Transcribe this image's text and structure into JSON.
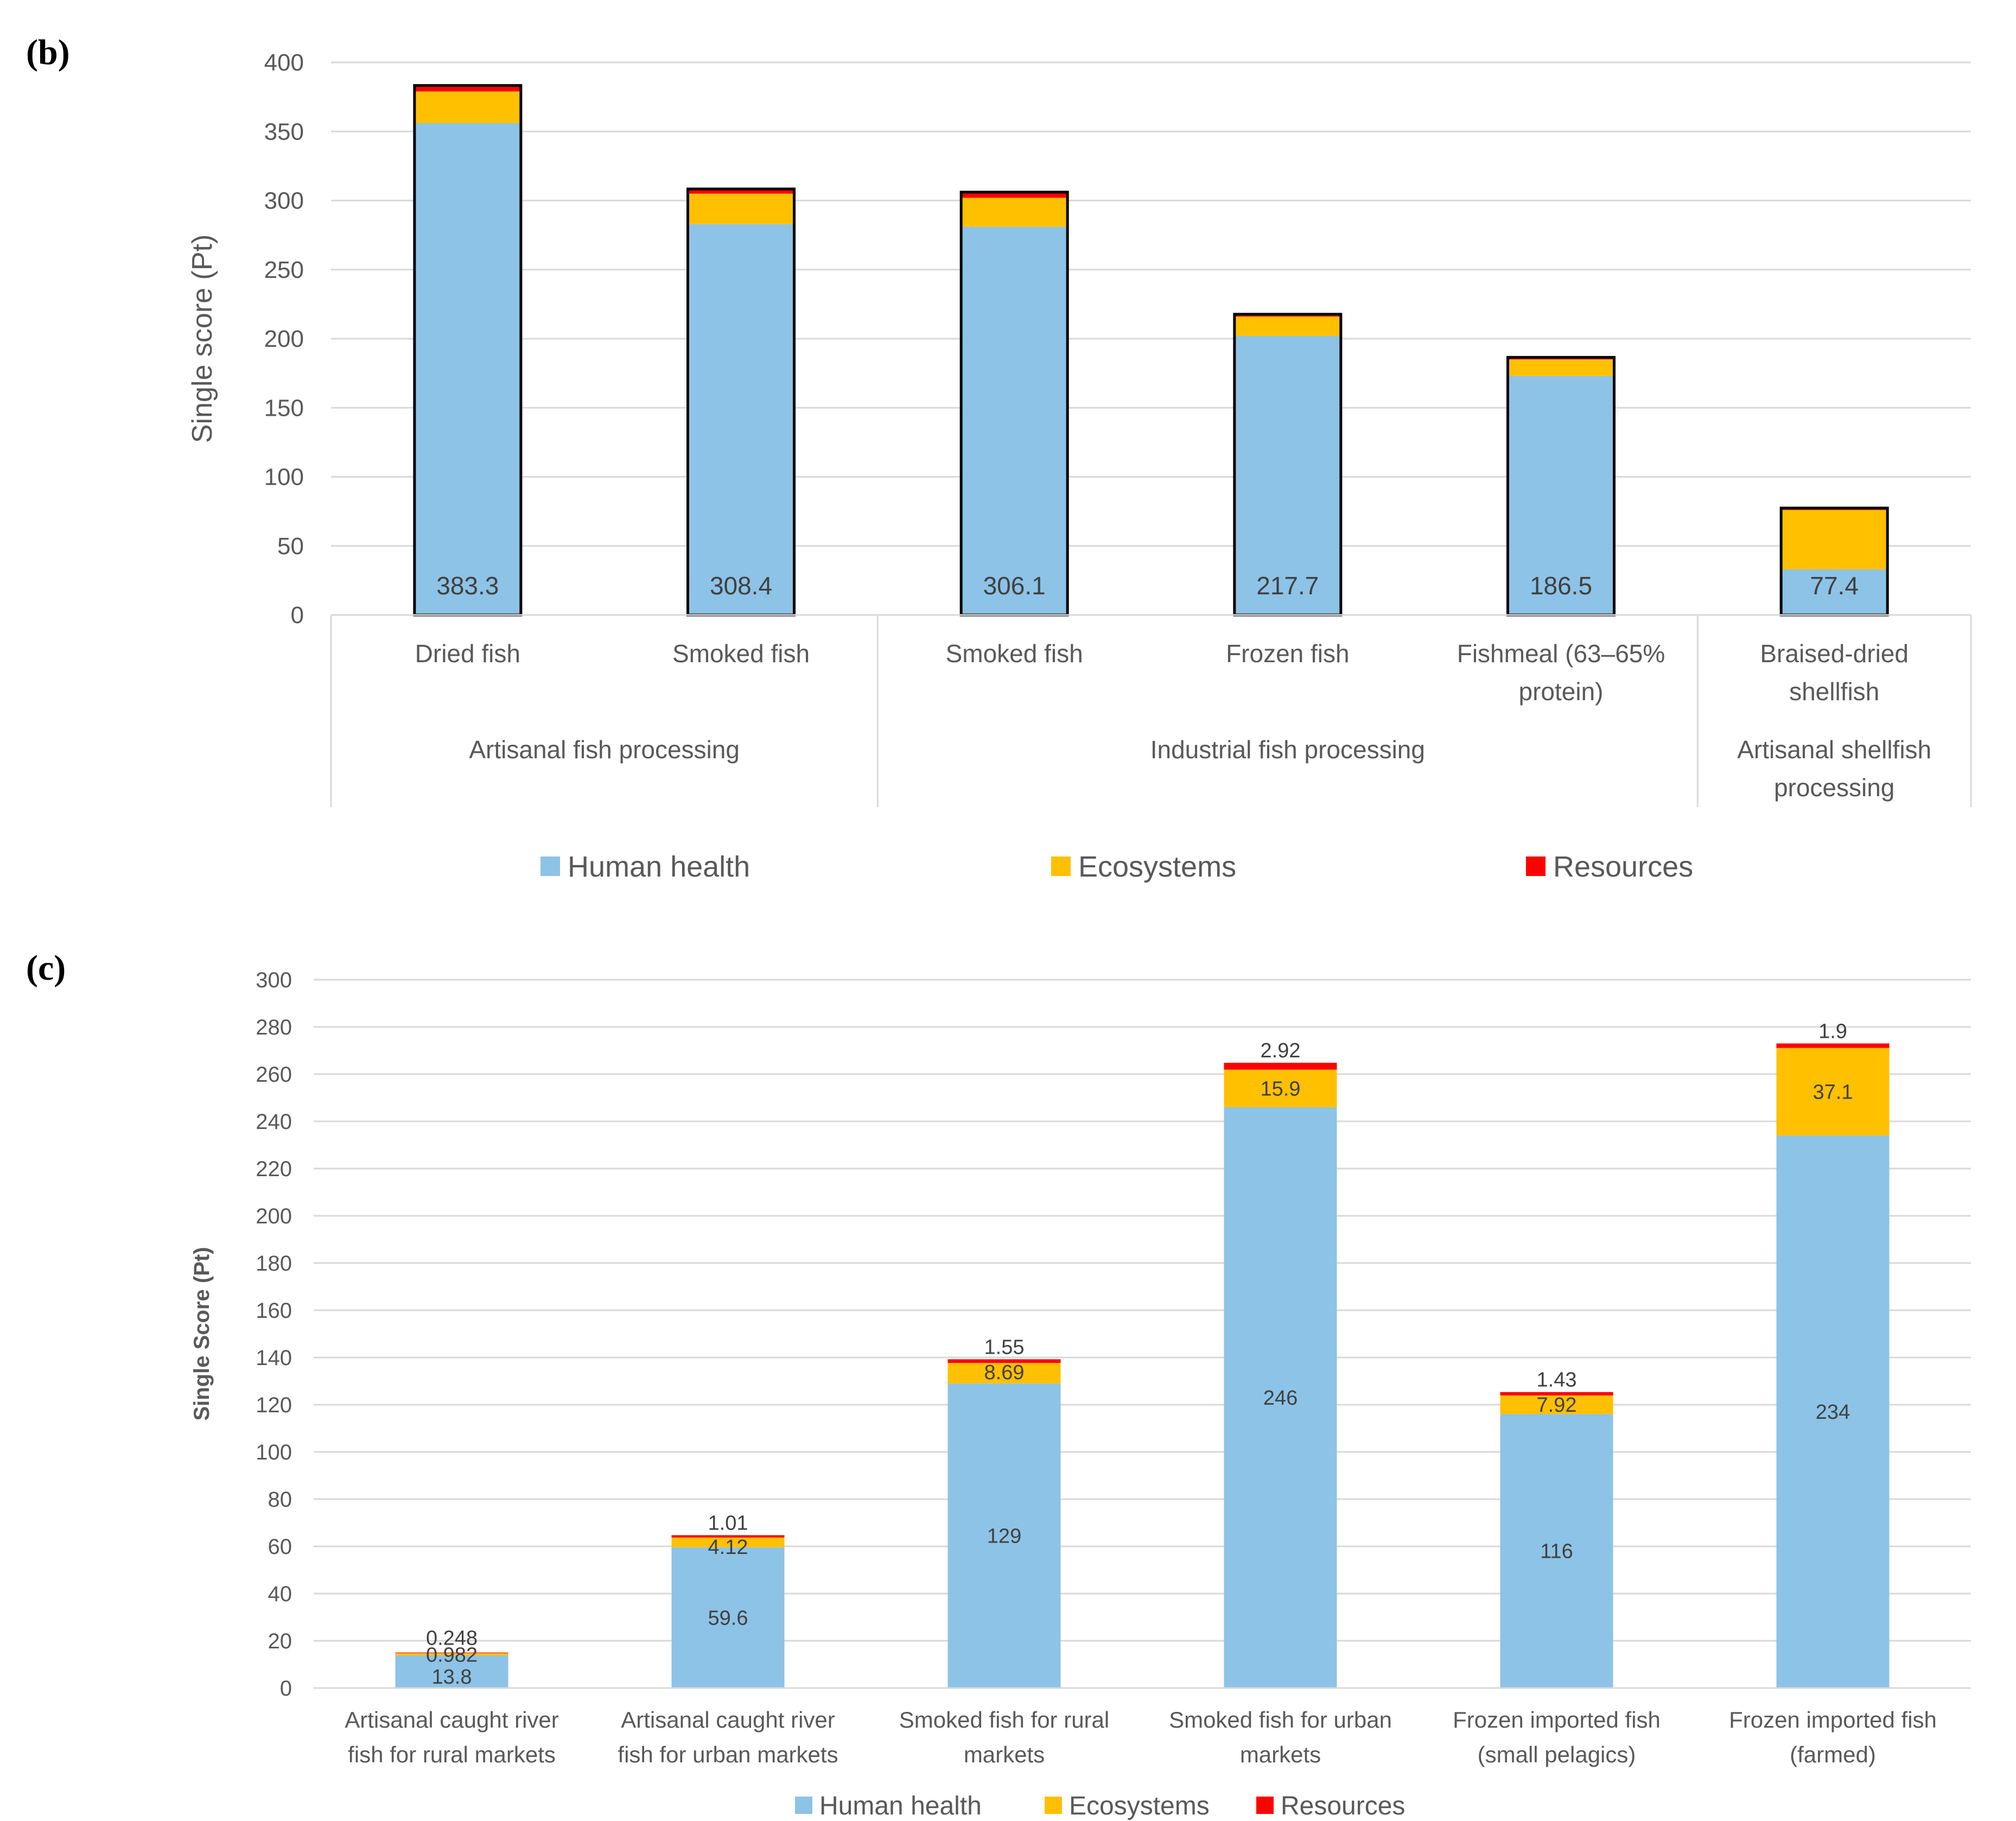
{
  "panel_b": {
    "label": "(b)",
    "legend": [
      {
        "name": "Human health",
        "color": "#8DC3E6"
      },
      {
        "name": "Ecosystems",
        "color": "#FFC000"
      },
      {
        "name": "Resources",
        "color": "#FF0000"
      }
    ],
    "groups": [
      {
        "name": "Artisanal fish processing",
        "lines": [
          "Artisanal fish processing"
        ],
        "span": 2
      },
      {
        "name": "Industrial fish processing",
        "lines": [
          "Industrial fish processing"
        ],
        "span": 3
      },
      {
        "name": "Artisanal shellfish processing",
        "lines": [
          "Artisanal shellfish",
          "processing"
        ],
        "span": 1
      }
    ]
  },
  "panel_c": {
    "label": "(c)",
    "legend": [
      {
        "name": "Human health",
        "color": "#8DC3E6"
      },
      {
        "name": "Ecosystems",
        "color": "#FFC000"
      },
      {
        "name": "Resources",
        "color": "#FF0000"
      }
    ]
  },
  "chart_data": [
    {
      "type": "bar",
      "stacked": true,
      "title": "",
      "xlabel": "",
      "ylabel": "Single score (Pt)",
      "ylim": [
        0,
        400
      ],
      "yticks": [
        0,
        50,
        100,
        150,
        200,
        250,
        300,
        350,
        400
      ],
      "grid": true,
      "legend": "bottom",
      "categories": [
        "Dried fish",
        "Smoked fish",
        "Smoked fish",
        "Frozen fish",
        "Fishmeal (63–65% protein)",
        "Braised-dried shellfish"
      ],
      "category_lines": [
        [
          "Dried fish"
        ],
        [
          "Smoked fish"
        ],
        [
          "Smoked fish"
        ],
        [
          "Frozen fish"
        ],
        [
          "Fishmeal (63–65%",
          "protein)"
        ],
        [
          "Braised-dried",
          "shellfish"
        ]
      ],
      "groups": [
        "Artisanal fish processing",
        "Industrial fish processing",
        "Artisanal shellfish processing"
      ],
      "series": [
        {
          "name": "Human health",
          "values": [
            356,
            283,
            281,
            202,
            173,
            33
          ]
        },
        {
          "name": "Ecosystems",
          "values": [
            23,
            22,
            21,
            14,
            12,
            43
          ]
        },
        {
          "name": "Resources",
          "values": [
            4.3,
            3.4,
            4.1,
            1.7,
            1.5,
            1.4
          ]
        }
      ],
      "totals": [
        "383.3",
        "308.4",
        "306.1",
        "217.7",
        "186.5",
        "77.4"
      ]
    },
    {
      "type": "bar",
      "stacked": true,
      "title": "",
      "xlabel": "",
      "ylabel": "Single Score (Pt)",
      "ylim": [
        0,
        300
      ],
      "yticks": [
        0,
        20,
        40,
        60,
        80,
        100,
        120,
        140,
        160,
        180,
        200,
        220,
        240,
        260,
        280,
        300
      ],
      "grid": true,
      "legend": "bottom",
      "categories": [
        "Artisanal caught river fish for rural markets",
        "Artisanal caught river fish for urban markets",
        "Smoked fish for rural markets",
        "Smoked fish for urban markets",
        "Frozen imported fish (small pelagics)",
        "Frozen imported fish (farmed)"
      ],
      "category_lines": [
        [
          "Artisanal caught river",
          "fish for rural markets"
        ],
        [
          "Artisanal caught river",
          "fish for urban markets"
        ],
        [
          "Smoked fish for rural",
          "markets"
        ],
        [
          "Smoked fish for urban",
          "markets"
        ],
        [
          "Frozen imported fish",
          "(small pelagics)"
        ],
        [
          "Frozen imported fish",
          "(farmed)"
        ]
      ],
      "series": [
        {
          "name": "Human health",
          "values": [
            13.8,
            59.6,
            129,
            246,
            116,
            234
          ],
          "labels": [
            "13.8",
            "59.6",
            "129",
            "246",
            "116",
            "234"
          ]
        },
        {
          "name": "Ecosystems",
          "values": [
            0.982,
            4.12,
            8.69,
            15.9,
            7.92,
            37.1
          ],
          "labels": [
            "0.982",
            "4.12",
            "8.69",
            "15.9",
            "7.92",
            "37.1"
          ]
        },
        {
          "name": "Resources",
          "values": [
            0.248,
            1.01,
            1.55,
            2.92,
            1.43,
            1.9
          ],
          "labels": [
            "0.248",
            "1.01",
            "1.55",
            "2.92",
            "1.43",
            "1.9"
          ]
        }
      ]
    }
  ]
}
